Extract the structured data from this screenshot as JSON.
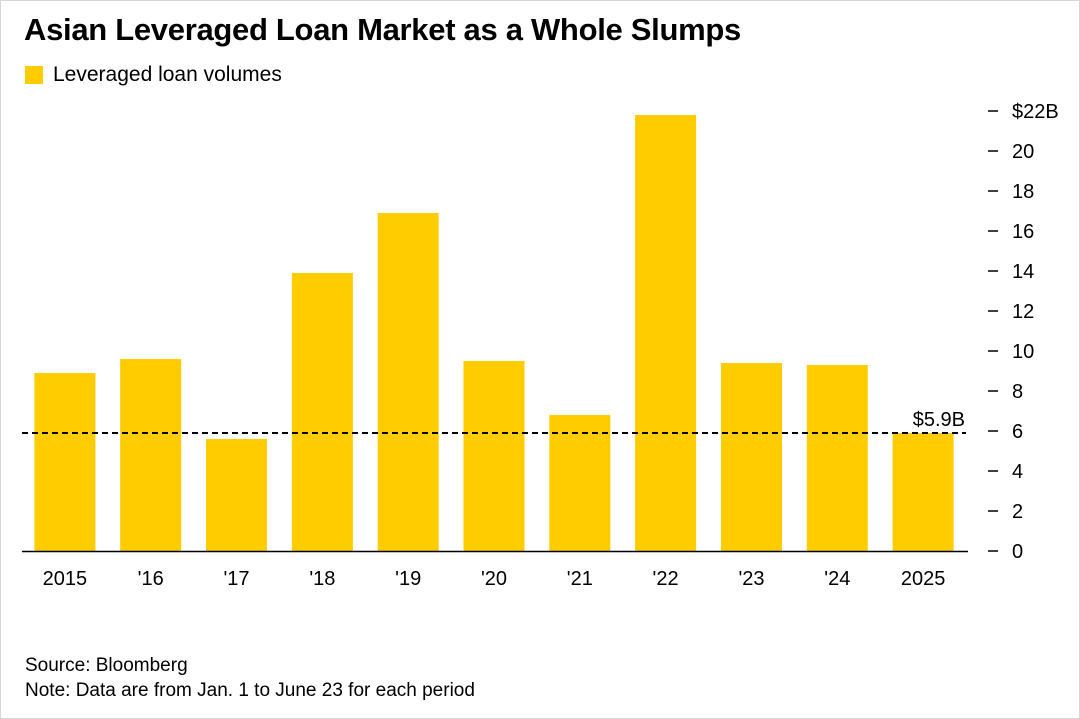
{
  "title": "Asian Leveraged Loan Market as a Whole Slumps",
  "legend": {
    "label": "Leveraged loan volumes"
  },
  "colors": {
    "bar": "#ffcc00",
    "reference_line": "#000000",
    "text": "#000000"
  },
  "chart_data": {
    "type": "bar",
    "categories": [
      "2015",
      "'16",
      "'17",
      "'18",
      "'19",
      "'20",
      "'21",
      "'22",
      "'23",
      "'24",
      "2025"
    ],
    "series": [
      {
        "name": "Leveraged loan volumes",
        "values": [
          8.9,
          9.6,
          5.6,
          13.9,
          16.9,
          9.5,
          6.8,
          21.8,
          9.4,
          9.3,
          5.9
        ]
      }
    ],
    "ylim": [
      0,
      22
    ],
    "y_ticks": [
      {
        "value": 22,
        "label": "$22B"
      },
      {
        "value": 20,
        "label": "20"
      },
      {
        "value": 18,
        "label": "18"
      },
      {
        "value": 16,
        "label": "16"
      },
      {
        "value": 14,
        "label": "14"
      },
      {
        "value": 12,
        "label": "12"
      },
      {
        "value": 10,
        "label": "10"
      },
      {
        "value": 8,
        "label": "8"
      },
      {
        "value": 6,
        "label": "6"
      },
      {
        "value": 4,
        "label": "4"
      },
      {
        "value": 2,
        "label": "2"
      },
      {
        "value": 0,
        "label": "0"
      }
    ],
    "y_axis_side": "right",
    "reference_line": {
      "value": 5.9,
      "label": "$5.9B",
      "style": "dashed"
    },
    "grid": false,
    "legend_position": "top-left"
  },
  "footer": {
    "source": "Source: Bloomberg",
    "note": "Note: Data are from Jan. 1 to June 23 for each period"
  }
}
